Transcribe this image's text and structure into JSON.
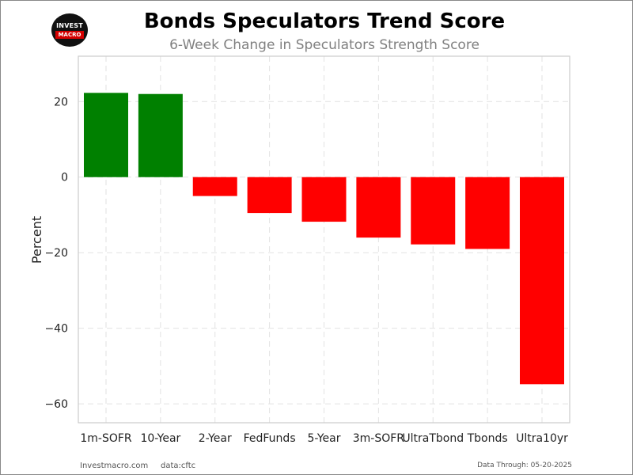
{
  "logo": {
    "line1": "INVEST",
    "line2": "MACRO"
  },
  "chart_data": {
    "type": "bar",
    "title": "Bonds Speculators Trend Score",
    "subtitle": "6-Week Change in Speculators Strength Score",
    "xlabel": "",
    "ylabel": "Percent",
    "categories": [
      "1m-SOFR",
      "10-Year",
      "2-Year",
      "FedFunds",
      "5-Year",
      "3m-SOFR",
      "UltraTbond",
      "Tbonds",
      "Ultra10yr"
    ],
    "values": [
      22.3,
      22.0,
      -5.0,
      -9.5,
      -11.8,
      -16.0,
      -17.8,
      -19.0,
      -54.8
    ],
    "ylim": [
      -65,
      32
    ],
    "yticks": [
      20,
      0,
      -20,
      -40,
      -60
    ],
    "ytick_labels": [
      "20",
      "0",
      "−20",
      "−40",
      "−60"
    ],
    "grid": true,
    "colors": {
      "positive": "#008000",
      "negative": "#ff0000",
      "grid": "#e2e2e2",
      "spine": "#cccccc"
    }
  },
  "footer": {
    "site": "Investmacro.com",
    "source": "data:cftc",
    "date": "Data Through: 05-20-2025"
  }
}
